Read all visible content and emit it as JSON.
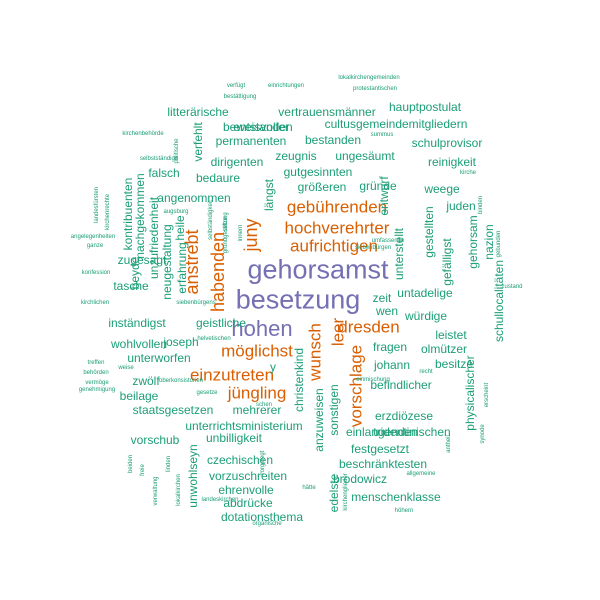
{
  "colors": {
    "top": "#7570b3",
    "major": "#d95f02",
    "minor": "#1b9e77"
  },
  "words": [
    {
      "t": "gehorsamst",
      "c": "top"
    },
    {
      "t": "besetzung",
      "c": "top"
    },
    {
      "t": "hohen",
      "c": "top"
    },
    {
      "t": "anstrebt",
      "c": "major"
    },
    {
      "t": "habenden",
      "c": "major"
    },
    {
      "t": "juny",
      "c": "major"
    },
    {
      "t": "gebührenden",
      "c": "major"
    },
    {
      "t": "hochverehrter",
      "c": "major"
    },
    {
      "t": "aufrichtigen",
      "c": "major"
    },
    {
      "t": "dresden",
      "c": "major"
    },
    {
      "t": "leer",
      "c": "major"
    },
    {
      "t": "vorschlage",
      "c": "major"
    },
    {
      "t": "wunsch",
      "c": "major"
    },
    {
      "t": "möglichst",
      "c": "major"
    },
    {
      "t": "einzutreten",
      "c": "major"
    },
    {
      "t": "jüngling",
      "c": "major"
    },
    {
      "t": "hauptpostulat",
      "c": "minor"
    },
    {
      "t": "beweisvoller",
      "c": "minor"
    },
    {
      "t": "litterärische",
      "c": "minor"
    },
    {
      "t": "vertrauensmänner",
      "c": "minor"
    },
    {
      "t": "cultusgemeindemitgliedern",
      "c": "minor"
    },
    {
      "t": "entstanden",
      "c": "minor"
    },
    {
      "t": "permanenten",
      "c": "minor"
    },
    {
      "t": "bestanden",
      "c": "minor"
    },
    {
      "t": "schulprovisor",
      "c": "minor"
    },
    {
      "t": "zeugnis",
      "c": "minor"
    },
    {
      "t": "ungesäumt",
      "c": "minor"
    },
    {
      "t": "dirigenten",
      "c": "minor"
    },
    {
      "t": "gutgesinnten",
      "c": "minor"
    },
    {
      "t": "reinigkeit",
      "c": "minor"
    },
    {
      "t": "falsch",
      "c": "minor"
    },
    {
      "t": "bedaure",
      "c": "minor"
    },
    {
      "t": "größeren",
      "c": "minor"
    },
    {
      "t": "gründe",
      "c": "minor"
    },
    {
      "t": "weege",
      "c": "minor"
    },
    {
      "t": "angenommen",
      "c": "minor"
    },
    {
      "t": "juden",
      "c": "minor"
    },
    {
      "t": "zugesagt",
      "c": "minor"
    },
    {
      "t": "tasche",
      "c": "minor"
    },
    {
      "t": "untadelige",
      "c": "minor"
    },
    {
      "t": "zeit",
      "c": "minor"
    },
    {
      "t": "wen",
      "c": "minor"
    },
    {
      "t": "inständigst",
      "c": "minor"
    },
    {
      "t": "geistliche",
      "c": "minor"
    },
    {
      "t": "würdige",
      "c": "minor"
    },
    {
      "t": "leistet",
      "c": "minor"
    },
    {
      "t": "joseph",
      "c": "minor"
    },
    {
      "t": "wohlvollen",
      "c": "minor"
    },
    {
      "t": "fragen",
      "c": "minor"
    },
    {
      "t": "olmützer",
      "c": "minor"
    },
    {
      "t": "unterworfen",
      "c": "minor"
    },
    {
      "t": "johann",
      "c": "minor"
    },
    {
      "t": "besitze",
      "c": "minor"
    },
    {
      "t": "zwölf",
      "c": "minor"
    },
    {
      "t": "y",
      "c": "minor"
    },
    {
      "t": "befindlicher",
      "c": "minor"
    },
    {
      "t": "beilage",
      "c": "minor"
    },
    {
      "t": "staatsgesetzen",
      "c": "minor"
    },
    {
      "t": "mehrerer",
      "c": "minor"
    },
    {
      "t": "erzdiözese",
      "c": "minor"
    },
    {
      "t": "unterrichtsministerium",
      "c": "minor"
    },
    {
      "t": "tridentinischen",
      "c": "minor"
    },
    {
      "t": "vorschub",
      "c": "minor"
    },
    {
      "t": "unbilligkeit",
      "c": "minor"
    },
    {
      "t": "einlangenden",
      "c": "minor"
    },
    {
      "t": "festgesetzt",
      "c": "minor"
    },
    {
      "t": "czechischen",
      "c": "minor"
    },
    {
      "t": "beschränktesten",
      "c": "minor"
    },
    {
      "t": "vorzuschreiten",
      "c": "minor"
    },
    {
      "t": "brodowicz",
      "c": "minor"
    },
    {
      "t": "ehrenvolle",
      "c": "minor"
    },
    {
      "t": "menschenklasse",
      "c": "minor"
    },
    {
      "t": "abdrücke",
      "c": "minor"
    },
    {
      "t": "dotationsthema",
      "c": "minor"
    },
    {
      "t": "kontribuenten",
      "c": "minor"
    },
    {
      "t": "nachgekommen",
      "c": "minor"
    },
    {
      "t": "unzufriedenheit",
      "c": "minor"
    },
    {
      "t": "neugestaltung",
      "c": "minor"
    },
    {
      "t": "erfahrung",
      "c": "minor"
    },
    {
      "t": "heile",
      "c": "minor"
    },
    {
      "t": "beyde",
      "c": "minor"
    },
    {
      "t": "verfehlt",
      "c": "minor"
    },
    {
      "t": "längst",
      "c": "minor"
    },
    {
      "t": "entwurf",
      "c": "minor"
    },
    {
      "t": "unterstellt",
      "c": "minor"
    },
    {
      "t": "gestellten",
      "c": "minor"
    },
    {
      "t": "gefälligst",
      "c": "minor"
    },
    {
      "t": "gehorsam",
      "c": "minor"
    },
    {
      "t": "nazion",
      "c": "minor"
    },
    {
      "t": "schullocalitäten",
      "c": "minor"
    },
    {
      "t": "physicalischer",
      "c": "minor"
    },
    {
      "t": "christenkind",
      "c": "minor"
    },
    {
      "t": "sonstigen",
      "c": "minor"
    },
    {
      "t": "anzuweisen",
      "c": "minor"
    },
    {
      "t": "unwohlseyn",
      "c": "minor"
    },
    {
      "t": "edelste",
      "c": "minor"
    },
    {
      "t": "verfügt",
      "c": "minor"
    },
    {
      "t": "einrichtungen",
      "c": "minor"
    },
    {
      "t": "lokalkirchengemeinden",
      "c": "minor"
    },
    {
      "t": "bestättigung",
      "c": "minor"
    },
    {
      "t": "protestantischen",
      "c": "minor"
    },
    {
      "t": "kirchenbehörde",
      "c": "minor"
    },
    {
      "t": "selbstständige",
      "c": "minor"
    },
    {
      "t": "summus",
      "c": "minor"
    },
    {
      "t": "kirche",
      "c": "minor"
    },
    {
      "t": "augsburg",
      "c": "minor"
    },
    {
      "t": "angelegenheiten",
      "c": "minor"
    },
    {
      "t": "ganze",
      "c": "minor"
    },
    {
      "t": "umfassende",
      "c": "minor"
    },
    {
      "t": "siebenbürgen",
      "c": "minor"
    },
    {
      "t": "konfession",
      "c": "minor"
    },
    {
      "t": "zustand",
      "c": "minor"
    },
    {
      "t": "kirchlichen",
      "c": "minor"
    },
    {
      "t": "siebenbürgens",
      "c": "minor"
    },
    {
      "t": "helvetischen",
      "c": "minor"
    },
    {
      "t": "treffen",
      "c": "minor"
    },
    {
      "t": "weise",
      "c": "minor"
    },
    {
      "t": "behörden",
      "c": "minor"
    },
    {
      "t": "vermöge",
      "c": "minor"
    },
    {
      "t": "oberkonsistorien",
      "c": "minor"
    },
    {
      "t": "genehmigung",
      "c": "minor"
    },
    {
      "t": "gesetze",
      "c": "minor"
    },
    {
      "t": "einmischung",
      "c": "minor"
    },
    {
      "t": "recht",
      "c": "minor"
    },
    {
      "t": "schen",
      "c": "minor"
    },
    {
      "t": "landeskirchen",
      "c": "minor"
    },
    {
      "t": "hätte",
      "c": "minor"
    },
    {
      "t": "allgemeine",
      "c": "minor"
    },
    {
      "t": "höhern",
      "c": "minor"
    },
    {
      "t": "organische",
      "c": "minor"
    },
    {
      "t": "landesfürsten",
      "c": "minor"
    },
    {
      "t": "kirchenrechte",
      "c": "minor"
    },
    {
      "t": "selbständigkeit",
      "c": "minor"
    },
    {
      "t": "stiftung",
      "c": "minor"
    },
    {
      "t": "binden",
      "c": "minor"
    },
    {
      "t": "gebunden",
      "c": "minor"
    },
    {
      "t": "politische",
      "c": "minor"
    },
    {
      "t": "grundgesetze",
      "c": "minor"
    },
    {
      "t": "innern",
      "c": "minor"
    },
    {
      "t": "linden",
      "c": "minor"
    },
    {
      "t": "beiden",
      "c": "minor"
    },
    {
      "t": "freie",
      "c": "minor"
    },
    {
      "t": "lokalkirchen",
      "c": "minor"
    },
    {
      "t": "antheil",
      "c": "minor"
    },
    {
      "t": "synode",
      "c": "minor"
    },
    {
      "t": "erscheint",
      "c": "minor"
    },
    {
      "t": "verwaltung",
      "c": "minor"
    },
    {
      "t": "vorgelegt",
      "c": "minor"
    },
    {
      "t": "kirchenglieder",
      "c": "minor"
    },
    {
      "t": "selbstständigkeit",
      "c": "minor"
    },
    {
      "t": "sowohl",
      "c": "minor"
    },
    {
      "t": "wahlkörper",
      "c": "minor"
    }
  ]
}
